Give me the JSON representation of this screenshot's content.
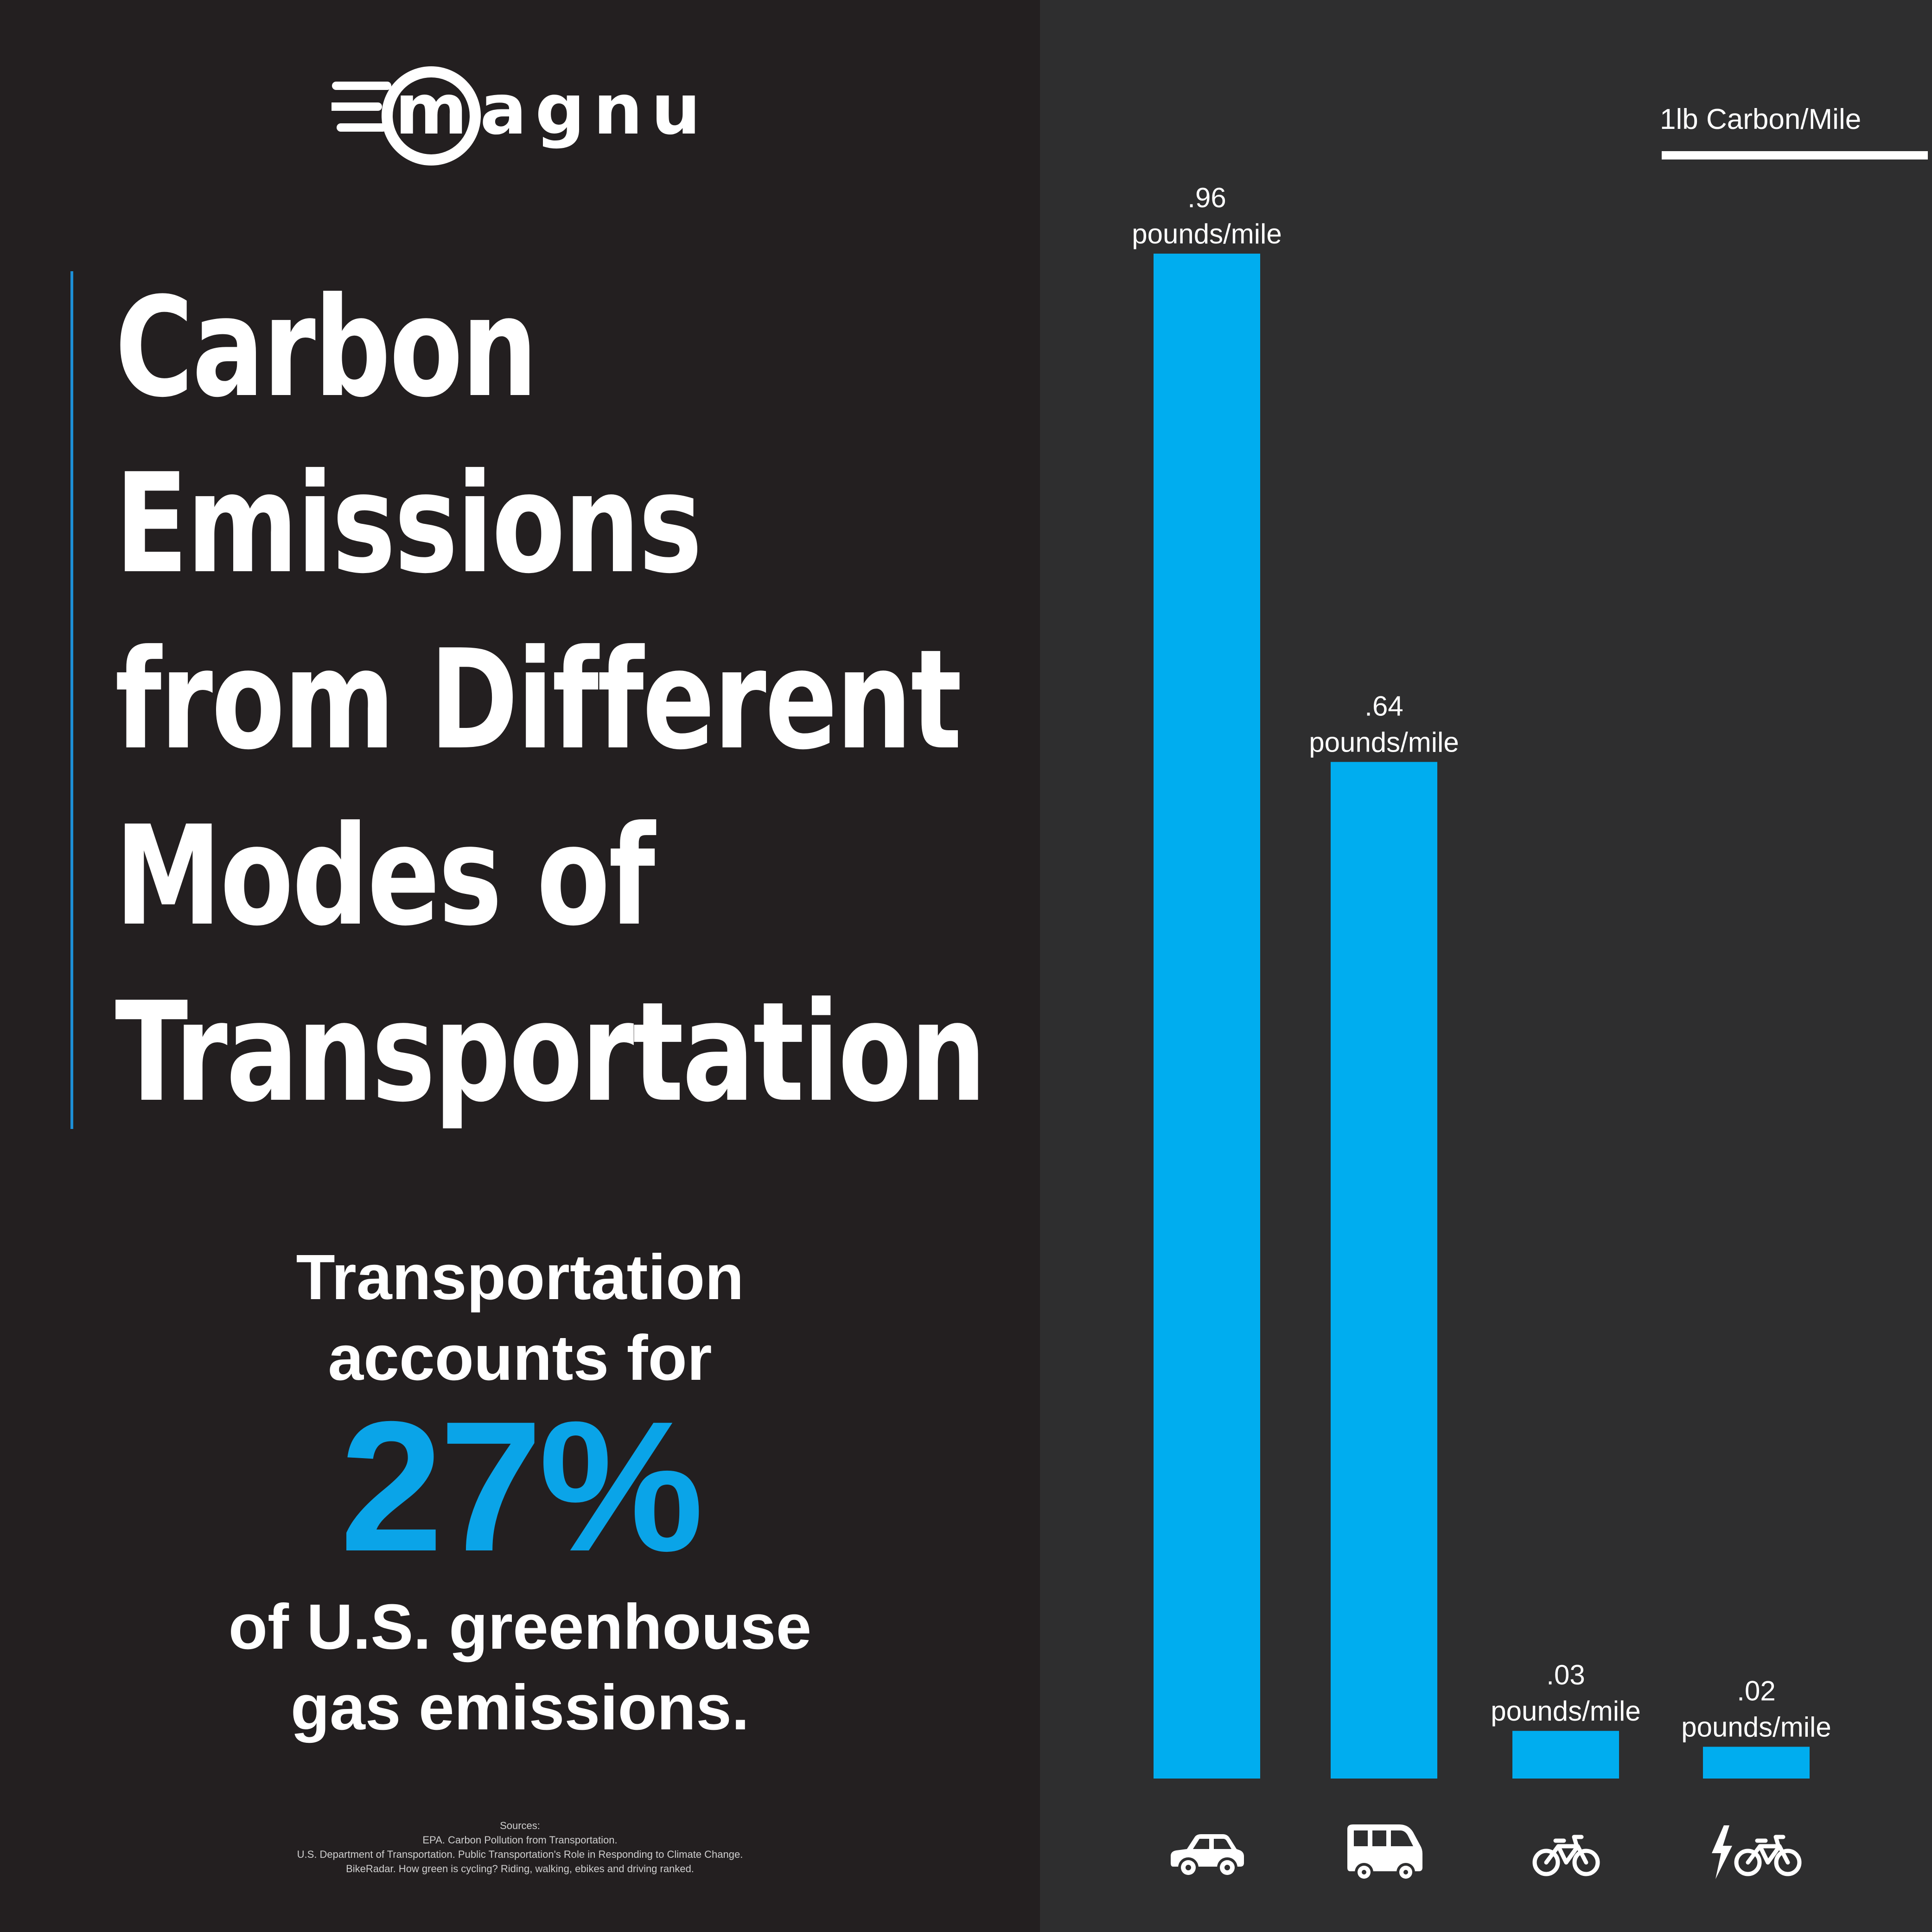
{
  "brand": {
    "logo_text": "magnum"
  },
  "title_lines": [
    "Carbon",
    "Emissions",
    "from Different",
    "Modes of",
    "Transportation"
  ],
  "stat": {
    "line1": "Transportation",
    "line2": "accounts for",
    "value": "27%",
    "line3": "of U.S. greenhouse",
    "line4": "gas emissions."
  },
  "sources": {
    "heading": "Sources:",
    "items": [
      "EPA. Carbon Pollution from Transportation.",
      "U.S. Department of Transportation. Public Transportation's Role in Responding to Climate Change.",
      "BikeRadar. How green is cycling? Riding, walking, ebikes and driving ranked."
    ]
  },
  "legend": {
    "label": "1lb Carbon/Mile",
    "value": 1
  },
  "colors": {
    "bar": "#00adef",
    "accent": "#0aa4e8",
    "left_bg": "#231f20",
    "right_bg": "#2e2e2f"
  },
  "chart_data": {
    "type": "bar",
    "categories": [
      "car-icon",
      "bus-icon",
      "bicycle-icon",
      "ebike-icon"
    ],
    "values": [
      0.96,
      0.64,
      0.03,
      0.02
    ],
    "value_labels": [
      ".96",
      ".64",
      ".03",
      ".02"
    ],
    "unit_label": "pounds/mile",
    "ylim": [
      0,
      1
    ],
    "grid": false
  }
}
